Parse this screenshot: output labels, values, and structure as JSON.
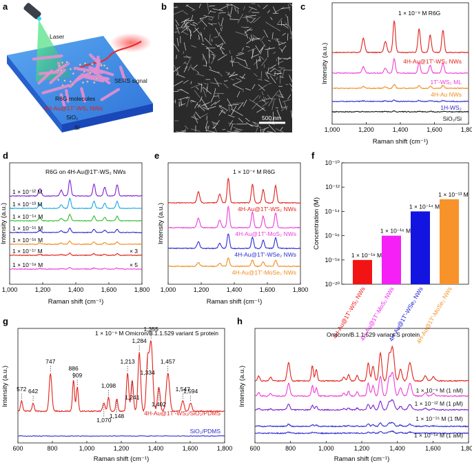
{
  "panels": {
    "a": {
      "letter": "a",
      "labels": {
        "laser": "Laser",
        "sers": "SERS signal",
        "molecules": "R6G molecules",
        "nws": "4H-Au@1T'-WS₂ NWs",
        "sio2": "SiO₂",
        "si": "Si"
      },
      "colors": {
        "substrate_top": "#3f8fe6",
        "substrate_side": "#1d4fc8",
        "nanowire": "#e58fcf",
        "laser_beam": "#39d36a",
        "signal": "#e23030"
      }
    },
    "b": {
      "letter": "b",
      "scale_bar": "500 nm"
    },
    "c": {
      "letter": "c",
      "note": "1 × 10⁻⁹ M R6G",
      "xlabel": "Raman shift (cm⁻¹)",
      "ylabel": "Intensity (a.u.)",
      "xticks": [
        "1,000",
        "1,200",
        "1,400",
        "1,600",
        "1,800"
      ],
      "series": [
        {
          "name": "4H-Au@1T'-WS₂ NWs",
          "color": "#e0201a",
          "scale": 1.0
        },
        {
          "name": "1T'-WS₂ ML",
          "color": "#ee3cd8",
          "scale": 0.45
        },
        {
          "name": "4H-Au NWs",
          "color": "#f08a1c",
          "scale": 0.12
        },
        {
          "name": "1H-WS₂",
          "color": "#2a2ad0",
          "scale": 0.04
        },
        {
          "name": "SiO₂/Si",
          "color": "#111111",
          "scale": 0.02
        }
      ]
    },
    "d": {
      "letter": "d",
      "note": "R6G on 4H-Au@1T'-WS₂ NWs",
      "xlabel": "Raman shift (cm⁻¹)",
      "ylabel": "Intensity (a.u.)",
      "xticks": [
        "1,000",
        "1,200",
        "1,400",
        "1,600",
        "1,800"
      ],
      "series": [
        {
          "name": "1 × 10⁻¹² M",
          "color": "#7a1fd2",
          "scale": 0.9,
          "mult": ""
        },
        {
          "name": "1 × 10⁻¹³ M",
          "color": "#18a8e0",
          "scale": 0.55,
          "mult": ""
        },
        {
          "name": "1 × 10⁻¹⁴ M",
          "color": "#2cbf2c",
          "scale": 0.35,
          "mult": ""
        },
        {
          "name": "1 × 10⁻¹⁵ M",
          "color": "#2a2ad0",
          "scale": 0.25,
          "mult": ""
        },
        {
          "name": "1 × 10⁻¹⁶ M",
          "color": "#f08a1c",
          "scale": 0.18,
          "mult": ""
        },
        {
          "name": "1 × 10⁻¹⁷ M",
          "color": "#e0201a",
          "scale": 0.12,
          "mult": "× 3"
        },
        {
          "name": "1 × 10⁻¹⁸ M",
          "color": "#ee3cd8",
          "scale": 0.08,
          "mult": "× 5"
        }
      ]
    },
    "e": {
      "letter": "e",
      "note": "1 × 10⁻⁹ M R6G",
      "xlabel": "Raman shift (cm⁻¹)",
      "ylabel": "Intensity (a.u.)",
      "xticks": [
        "1,000",
        "1,200",
        "1,400",
        "1,600",
        "1,800"
      ],
      "series": [
        {
          "name": "4H-Au@1T'-WS₂ NWs",
          "color": "#e0201a",
          "scale": 1.0
        },
        {
          "name": "4H-Au@1T'-MoS₂ NWs",
          "color": "#ee3cd8",
          "scale": 0.85
        },
        {
          "name": "4H-Au@1T'-WSe₂ NWs",
          "color": "#2a2ad0",
          "scale": 0.6
        },
        {
          "name": "4H-Au@1T'-MoSe₂ NWs",
          "color": "#f08a1c",
          "scale": 0.35
        }
      ]
    },
    "f": {
      "letter": "f",
      "ylabel": "Concentration (M)",
      "yticks": [
        "10⁻²⁰",
        "10⁻¹⁸",
        "10⁻¹⁶",
        "10⁻¹⁴",
        "10⁻¹²",
        "10⁻¹⁰"
      ]
    },
    "g": {
      "letter": "g",
      "note": "1 × 10⁻⁹ M Omicron/B.1.1.529 variant S protein",
      "xlabel": "Raman shift (cm⁻¹)",
      "ylabel": "Intensity (a.u.)",
      "xticks": [
        "600",
        "800",
        "1,000",
        "1,200",
        "1,400",
        "1,600",
        "1,800"
      ],
      "series": [
        {
          "name": "4H-Au@1T'-WS₂/SiO₂/PDMS",
          "color": "#e0201a"
        },
        {
          "name": "SiO₂/PDMS",
          "color": "#2a2ad0"
        }
      ],
      "peaks": [
        "572",
        "642",
        "747",
        "886",
        "909",
        "1,070",
        "1,098",
        "1,148",
        "1,213",
        "1,241",
        "1,284",
        "1,334",
        "1,355",
        "1,402",
        "1,457",
        "1,547",
        "1,594"
      ]
    },
    "h": {
      "letter": "h",
      "note": "Omicron/B.1.1.529 variant S protein",
      "xlabel": "Raman shift (cm⁻¹)",
      "ylabel": "Intensity (a.u.)",
      "xticks": [
        "600",
        "800",
        "1,000",
        "1,200",
        "1,400",
        "1,600",
        "1,800"
      ],
      "series": [
        {
          "name": "",
          "color": "#e0201a",
          "scale": 1.0
        },
        {
          "name": "1 × 10⁻⁹ M (1 nM)",
          "color": "#ee3cd8",
          "scale": 0.7
        },
        {
          "name": "1 × 10⁻¹² M (1 pM)",
          "color": "#7a1fd2",
          "scale": 0.3
        },
        {
          "name": "1 × 10⁻¹⁵ M (1 fM)",
          "color": "#2a2ad0",
          "scale": 0.12
        },
        {
          "name": "1 × 10⁻¹⁸ M (1 aM)",
          "color": "#2a2ad0",
          "scale": 0.06
        }
      ]
    }
  },
  "chart_data": [
    {
      "type": "line",
      "panel": "c",
      "xlabel": "Raman shift (cm⁻¹)",
      "ylabel": "Intensity (a.u.)",
      "xlim": [
        1000,
        1800
      ],
      "series": [
        {
          "name": "4H-Au@1T'-WS₂ NWs",
          "peaks_cm": [
            1183,
            1312,
            1364,
            1510,
            1575,
            1650
          ]
        },
        {
          "name": "1T'-WS₂ ML",
          "peaks_cm": [
            1364,
            1510,
            1650
          ]
        },
        {
          "name": "4H-Au NWs",
          "peaks_cm": [
            1364
          ]
        },
        {
          "name": "1H-WS₂",
          "peaks_cm": []
        },
        {
          "name": "SiO₂/Si",
          "peaks_cm": []
        }
      ]
    },
    {
      "type": "line",
      "panel": "d",
      "xlabel": "Raman shift (cm⁻¹)",
      "ylabel": "Intensity (a.u.)",
      "xlim": [
        1000,
        1800
      ],
      "series": [
        {
          "name": "1 × 10⁻¹² M"
        },
        {
          "name": "1 × 10⁻¹³ M"
        },
        {
          "name": "1 × 10⁻¹⁴ M"
        },
        {
          "name": "1 × 10⁻¹⁵ M"
        },
        {
          "name": "1 × 10⁻¹⁶ M"
        },
        {
          "name": "1 × 10⁻¹⁷ M"
        },
        {
          "name": "1 × 10⁻¹⁸ M"
        }
      ]
    },
    {
      "type": "line",
      "panel": "e",
      "xlabel": "Raman shift (cm⁻¹)",
      "ylabel": "Intensity (a.u.)",
      "xlim": [
        1000,
        1800
      ],
      "series": [
        {
          "name": "4H-Au@1T'-WS₂ NWs"
        },
        {
          "name": "4H-Au@1T'-MoS₂ NWs"
        },
        {
          "name": "4H-Au@1T'-WSe₂ NWs"
        },
        {
          "name": "4H-Au@1T'-MoSe₂ NWs"
        }
      ]
    },
    {
      "type": "bar",
      "panel": "f",
      "ylabel": "Concentration (M)",
      "yscale": "log",
      "ylim": [
        1e-20,
        1e-10
      ],
      "categories": [
        "4H-Au@1T'-WS₂ NWs",
        "4H-Au@1T'-MoS₂ NWs",
        "4H-Au@1T'-WSe₂ NWs",
        "4H-Au@1T'-MoSe₂ NWs"
      ],
      "values": [
        1e-18,
        1e-16,
        1e-14,
        1e-13
      ],
      "value_labels": [
        "1 × 10⁻¹⁸ M",
        "1 × 10⁻¹⁶ M",
        "1 × 10⁻¹⁴ M",
        "1 × 10⁻¹³ M"
      ],
      "colors": [
        "#f21414",
        "#f520f5",
        "#1414e0",
        "#f7932a"
      ]
    },
    {
      "type": "line",
      "panel": "g",
      "xlabel": "Raman shift (cm⁻¹)",
      "ylabel": "Intensity (a.u.)",
      "xlim": [
        550,
        1800
      ],
      "series": [
        {
          "name": "4H-Au@1T'-WS₂/SiO₂/PDMS",
          "peaks_cm": [
            572,
            642,
            747,
            886,
            909,
            1070,
            1098,
            1148,
            1213,
            1241,
            1284,
            1334,
            1355,
            1402,
            1457,
            1547,
            1594
          ]
        },
        {
          "name": "SiO₂/PDMS",
          "peaks_cm": []
        }
      ]
    },
    {
      "type": "line",
      "panel": "h",
      "xlabel": "Raman shift (cm⁻¹)",
      "ylabel": "Intensity (a.u.)",
      "xlim": [
        550,
        1800
      ],
      "series": [
        {
          "name": ""
        },
        {
          "name": "1 × 10⁻⁹ M (1 nM)"
        },
        {
          "name": "1 × 10⁻¹² M (1 pM)"
        },
        {
          "name": "1 × 10⁻¹⁵ M (1 fM)"
        },
        {
          "name": "1 × 10⁻¹⁸ M (1 aM)"
        }
      ]
    }
  ]
}
